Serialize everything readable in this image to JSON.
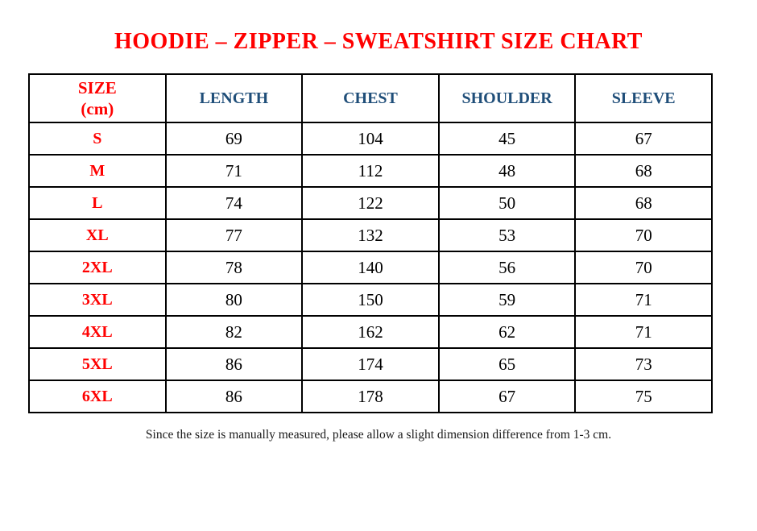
{
  "page": {
    "top_mark": ".",
    "title": "HOODIE – ZIPPER – SWEATSHIRT SIZE CHART",
    "footnote": "Since the size is manually measured, please allow a slight dimension difference from 1-3 cm."
  },
  "colors": {
    "title_red": "#ff0000",
    "size_label_red": "#ff0000",
    "header_blue": "#1f4e79",
    "body_text_black": "#000000",
    "table_border_black": "#000000",
    "background_white": "#ffffff"
  },
  "chart_data": {
    "type": "table",
    "title": "HOODIE – ZIPPER – SWEATSHIRT SIZE CHART",
    "unit": "cm",
    "columns": [
      "SIZE\n(cm)",
      "LENGTH",
      "CHEST",
      "SHOULDER",
      "SLEEVE"
    ],
    "rows": [
      {
        "size": "S",
        "length": 69,
        "chest": 104,
        "shoulder": 45,
        "sleeve": 67
      },
      {
        "size": "M",
        "length": 71,
        "chest": 112,
        "shoulder": 48,
        "sleeve": 68
      },
      {
        "size": "L",
        "length": 74,
        "chest": 122,
        "shoulder": 50,
        "sleeve": 68
      },
      {
        "size": "XL",
        "length": 77,
        "chest": 132,
        "shoulder": 53,
        "sleeve": 70
      },
      {
        "size": "2XL",
        "length": 78,
        "chest": 140,
        "shoulder": 56,
        "sleeve": 70
      },
      {
        "size": "3XL",
        "length": 80,
        "chest": 150,
        "shoulder": 59,
        "sleeve": 71
      },
      {
        "size": "4XL",
        "length": 82,
        "chest": 162,
        "shoulder": 62,
        "sleeve": 71
      },
      {
        "size": "5XL",
        "length": 86,
        "chest": 174,
        "shoulder": 65,
        "sleeve": 73
      },
      {
        "size": "6XL",
        "length": 86,
        "chest": 178,
        "shoulder": 67,
        "sleeve": 75
      }
    ],
    "footnote": "Since the size is manually measured, please allow a slight dimension difference from 1-3 cm."
  }
}
